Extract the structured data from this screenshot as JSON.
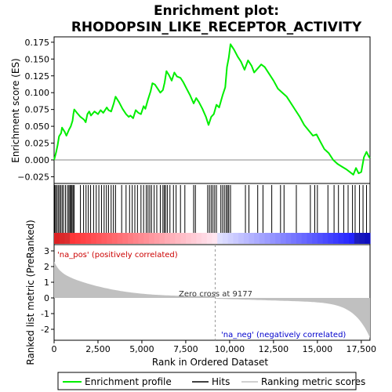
{
  "chart_data": {
    "type": "line",
    "title_line1": "Enrichment plot:",
    "title_line2": "RHODOPSIN_LIKE_RECEPTOR_ACTIVITY",
    "xlabel": "Rank in Ordered Dataset",
    "ylabel_top": "Enrichment score (ES)",
    "ylabel_bottom": "Ranked list metric (PreRanked)",
    "xlim": [
      0,
      18000
    ],
    "x_ticks": [
      0,
      2500,
      5000,
      7500,
      10000,
      12500,
      15000,
      17500
    ],
    "x_tick_labels": [
      "0",
      "2,500",
      "5,000",
      "7,500",
      "10,000",
      "12,500",
      "15,000",
      "17,500"
    ],
    "es_ylim": [
      -0.035,
      0.183
    ],
    "es_ticks": [
      -0.025,
      0,
      0.025,
      0.05,
      0.075,
      0.1,
      0.125,
      0.15,
      0.175
    ],
    "es_tick_labels": [
      "−0.025",
      "0.000",
      "0.025",
      "0.050",
      "0.075",
      "0.100",
      "0.125",
      "0.150",
      "0.175"
    ],
    "metric_ylim": [
      -2.7,
      3.4
    ],
    "metric_ticks": [
      -2,
      -1,
      0,
      1,
      2,
      3
    ],
    "metric_tick_labels": [
      "-2",
      "-1",
      "0",
      "1",
      "2",
      "3"
    ],
    "zero_cross_rank": 9177,
    "zero_cross_label": "Zero cross at 9177",
    "pos_label": "'na_pos' (positively correlated)",
    "neg_label": "'na_neg' (negatively correlated)",
    "series": [
      {
        "name": "Enrichment profile",
        "color": "#00ee00"
      }
    ],
    "es_points": [
      [
        0,
        0.0
      ],
      [
        120,
        0.012
      ],
      [
        200,
        0.022
      ],
      [
        280,
        0.035
      ],
      [
        400,
        0.04
      ],
      [
        450,
        0.048
      ],
      [
        600,
        0.042
      ],
      [
        700,
        0.036
      ],
      [
        850,
        0.045
      ],
      [
        950,
        0.05
      ],
      [
        1050,
        0.058
      ],
      [
        1100,
        0.068
      ],
      [
        1150,
        0.075
      ],
      [
        1300,
        0.07
      ],
      [
        1500,
        0.064
      ],
      [
        1700,
        0.06
      ],
      [
        1800,
        0.056
      ],
      [
        1900,
        0.068
      ],
      [
        2000,
        0.072
      ],
      [
        2100,
        0.066
      ],
      [
        2300,
        0.072
      ],
      [
        2500,
        0.068
      ],
      [
        2650,
        0.074
      ],
      [
        2800,
        0.07
      ],
      [
        3000,
        0.078
      ],
      [
        3100,
        0.074
      ],
      [
        3250,
        0.072
      ],
      [
        3400,
        0.084
      ],
      [
        3500,
        0.094
      ],
      [
        3700,
        0.086
      ],
      [
        3900,
        0.076
      ],
      [
        4100,
        0.068
      ],
      [
        4250,
        0.064
      ],
      [
        4350,
        0.066
      ],
      [
        4500,
        0.062
      ],
      [
        4650,
        0.074
      ],
      [
        4800,
        0.07
      ],
      [
        4950,
        0.068
      ],
      [
        5100,
        0.08
      ],
      [
        5200,
        0.076
      ],
      [
        5350,
        0.09
      ],
      [
        5500,
        0.102
      ],
      [
        5600,
        0.114
      ],
      [
        5750,
        0.112
      ],
      [
        5900,
        0.106
      ],
      [
        6050,
        0.1
      ],
      [
        6200,
        0.104
      ],
      [
        6300,
        0.115
      ],
      [
        6400,
        0.132
      ],
      [
        6550,
        0.126
      ],
      [
        6700,
        0.118
      ],
      [
        6850,
        0.13
      ],
      [
        7000,
        0.124
      ],
      [
        7200,
        0.122
      ],
      [
        7350,
        0.116
      ],
      [
        7550,
        0.106
      ],
      [
        7750,
        0.096
      ],
      [
        7950,
        0.084
      ],
      [
        8100,
        0.092
      ],
      [
        8250,
        0.086
      ],
      [
        8450,
        0.076
      ],
      [
        8650,
        0.064
      ],
      [
        8800,
        0.052
      ],
      [
        8950,
        0.064
      ],
      [
        9100,
        0.068
      ],
      [
        9250,
        0.082
      ],
      [
        9400,
        0.078
      ],
      [
        9600,
        0.096
      ],
      [
        9750,
        0.108
      ],
      [
        9850,
        0.138
      ],
      [
        9950,
        0.152
      ],
      [
        10050,
        0.172
      ],
      [
        10250,
        0.164
      ],
      [
        10450,
        0.154
      ],
      [
        10650,
        0.146
      ],
      [
        10850,
        0.134
      ],
      [
        11050,
        0.148
      ],
      [
        11250,
        0.14
      ],
      [
        11400,
        0.13
      ],
      [
        11600,
        0.136
      ],
      [
        11800,
        0.142
      ],
      [
        12000,
        0.138
      ],
      [
        12250,
        0.128
      ],
      [
        12500,
        0.118
      ],
      [
        12750,
        0.106
      ],
      [
        13000,
        0.1
      ],
      [
        13250,
        0.094
      ],
      [
        13500,
        0.084
      ],
      [
        13750,
        0.074
      ],
      [
        14000,
        0.064
      ],
      [
        14250,
        0.052
      ],
      [
        14500,
        0.044
      ],
      [
        14750,
        0.036
      ],
      [
        14950,
        0.038
      ],
      [
        15150,
        0.028
      ],
      [
        15400,
        0.016
      ],
      [
        15650,
        0.01
      ],
      [
        15900,
        0.0
      ],
      [
        16150,
        -0.006
      ],
      [
        16400,
        -0.01
      ],
      [
        16650,
        -0.014
      ],
      [
        16850,
        -0.018
      ],
      [
        17050,
        -0.022
      ],
      [
        17200,
        -0.012
      ],
      [
        17350,
        -0.02
      ],
      [
        17500,
        -0.018
      ],
      [
        17650,
        0.004
      ],
      [
        17800,
        0.012
      ],
      [
        17950,
        0.004
      ],
      [
        18000,
        0.003
      ]
    ],
    "hit_ranks": [
      30,
      80,
      150,
      230,
      300,
      380,
      460,
      540,
      650,
      760,
      840,
      900,
      960,
      1020,
      1080,
      1140,
      1500,
      1680,
      1820,
      1950,
      2080,
      2250,
      2400,
      2550,
      2700,
      2850,
      2980,
      3100,
      3250,
      3380,
      3500,
      3850,
      4100,
      4300,
      4450,
      4600,
      4750,
      4950,
      5100,
      5250,
      5350,
      5450,
      5550,
      5700,
      5850,
      6050,
      6200,
      6280,
      6350,
      6450,
      6600,
      6800,
      6950,
      7200,
      7450,
      7950,
      8050,
      8750,
      8850,
      8950,
      9050,
      9150,
      9250,
      9500,
      9600,
      9700,
      9800,
      9880,
      9950,
      10050,
      10900,
      11100,
      11600,
      11900,
      12400,
      12900,
      13100,
      13800,
      14600,
      14850,
      15000,
      15600,
      15950,
      16200,
      16500,
      16750,
      17000,
      17150,
      17400,
      17600,
      17800
    ],
    "legend": [
      {
        "label": "Enrichment profile",
        "kind": "line",
        "color": "#00ee00"
      },
      {
        "label": "Hits",
        "kind": "line",
        "color": "#000000"
      },
      {
        "label": "Ranking metric scores",
        "kind": "line",
        "color": "#c0c0c0"
      }
    ]
  }
}
